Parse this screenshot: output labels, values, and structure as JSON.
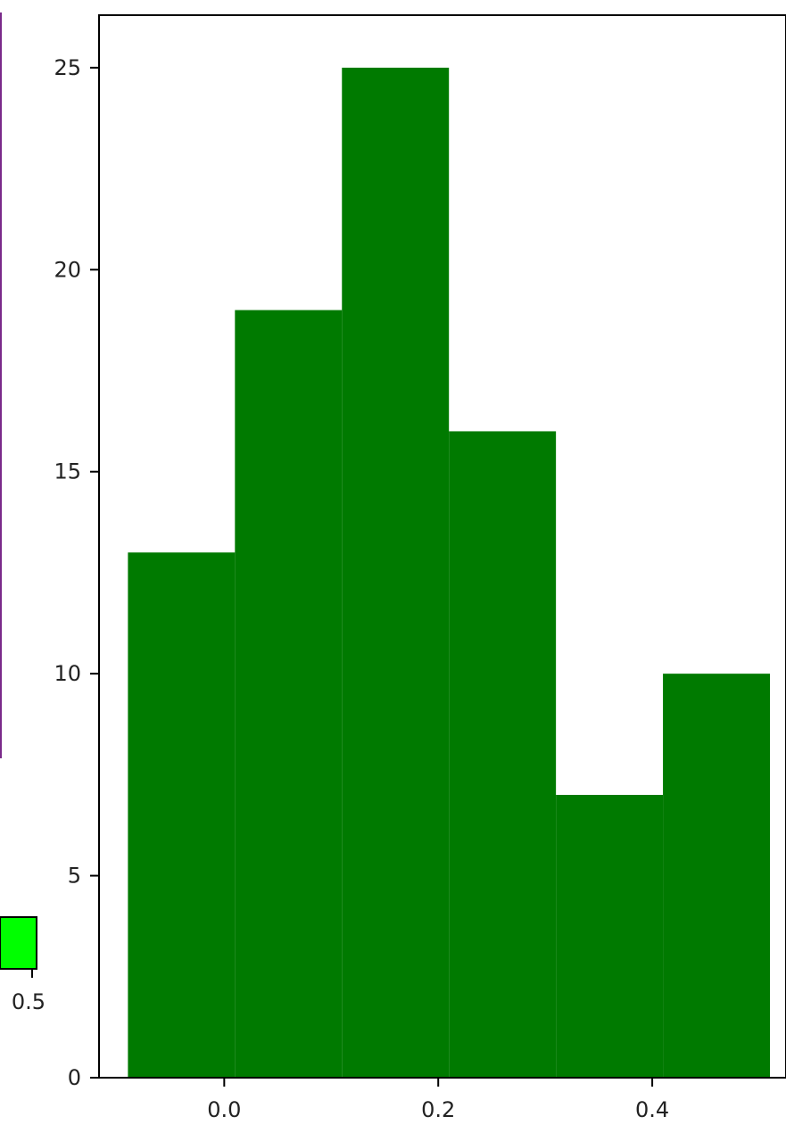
{
  "colors": {
    "bar_fill": "#007a00",
    "left_bar_fill": "#00ff00",
    "left_frame_line": "#7a2a8a",
    "axis": "#000000"
  },
  "chart_data": [
    {
      "type": "bar",
      "title": "",
      "xlabel": "",
      "ylabel": "",
      "bins": [
        {
          "x0": -0.09,
          "x1": 0.01,
          "value": 13
        },
        {
          "x0": 0.01,
          "x1": 0.11,
          "value": 19
        },
        {
          "x0": 0.11,
          "x1": 0.21,
          "value": 25
        },
        {
          "x0": 0.21,
          "x1": 0.31,
          "value": 16
        },
        {
          "x0": 0.31,
          "x1": 0.41,
          "value": 7
        },
        {
          "x0": 0.41,
          "x1": 0.51,
          "value": 10
        }
      ],
      "xlim": [
        -0.117,
        0.525
      ],
      "ylim": [
        0,
        26.3
      ],
      "x_ticks": [
        0.0,
        0.2,
        0.4
      ],
      "x_tick_labels": [
        "0.0",
        "0.2",
        "0.4"
      ],
      "y_ticks": [
        0,
        5,
        10,
        15,
        20,
        25
      ],
      "y_tick_labels": [
        "0",
        "5",
        "10",
        "15",
        "20",
        "25"
      ],
      "grid": false
    },
    {
      "type": "bar",
      "note_visible_fragment": true,
      "x_tick_labels": [
        "0.5"
      ]
    }
  ]
}
